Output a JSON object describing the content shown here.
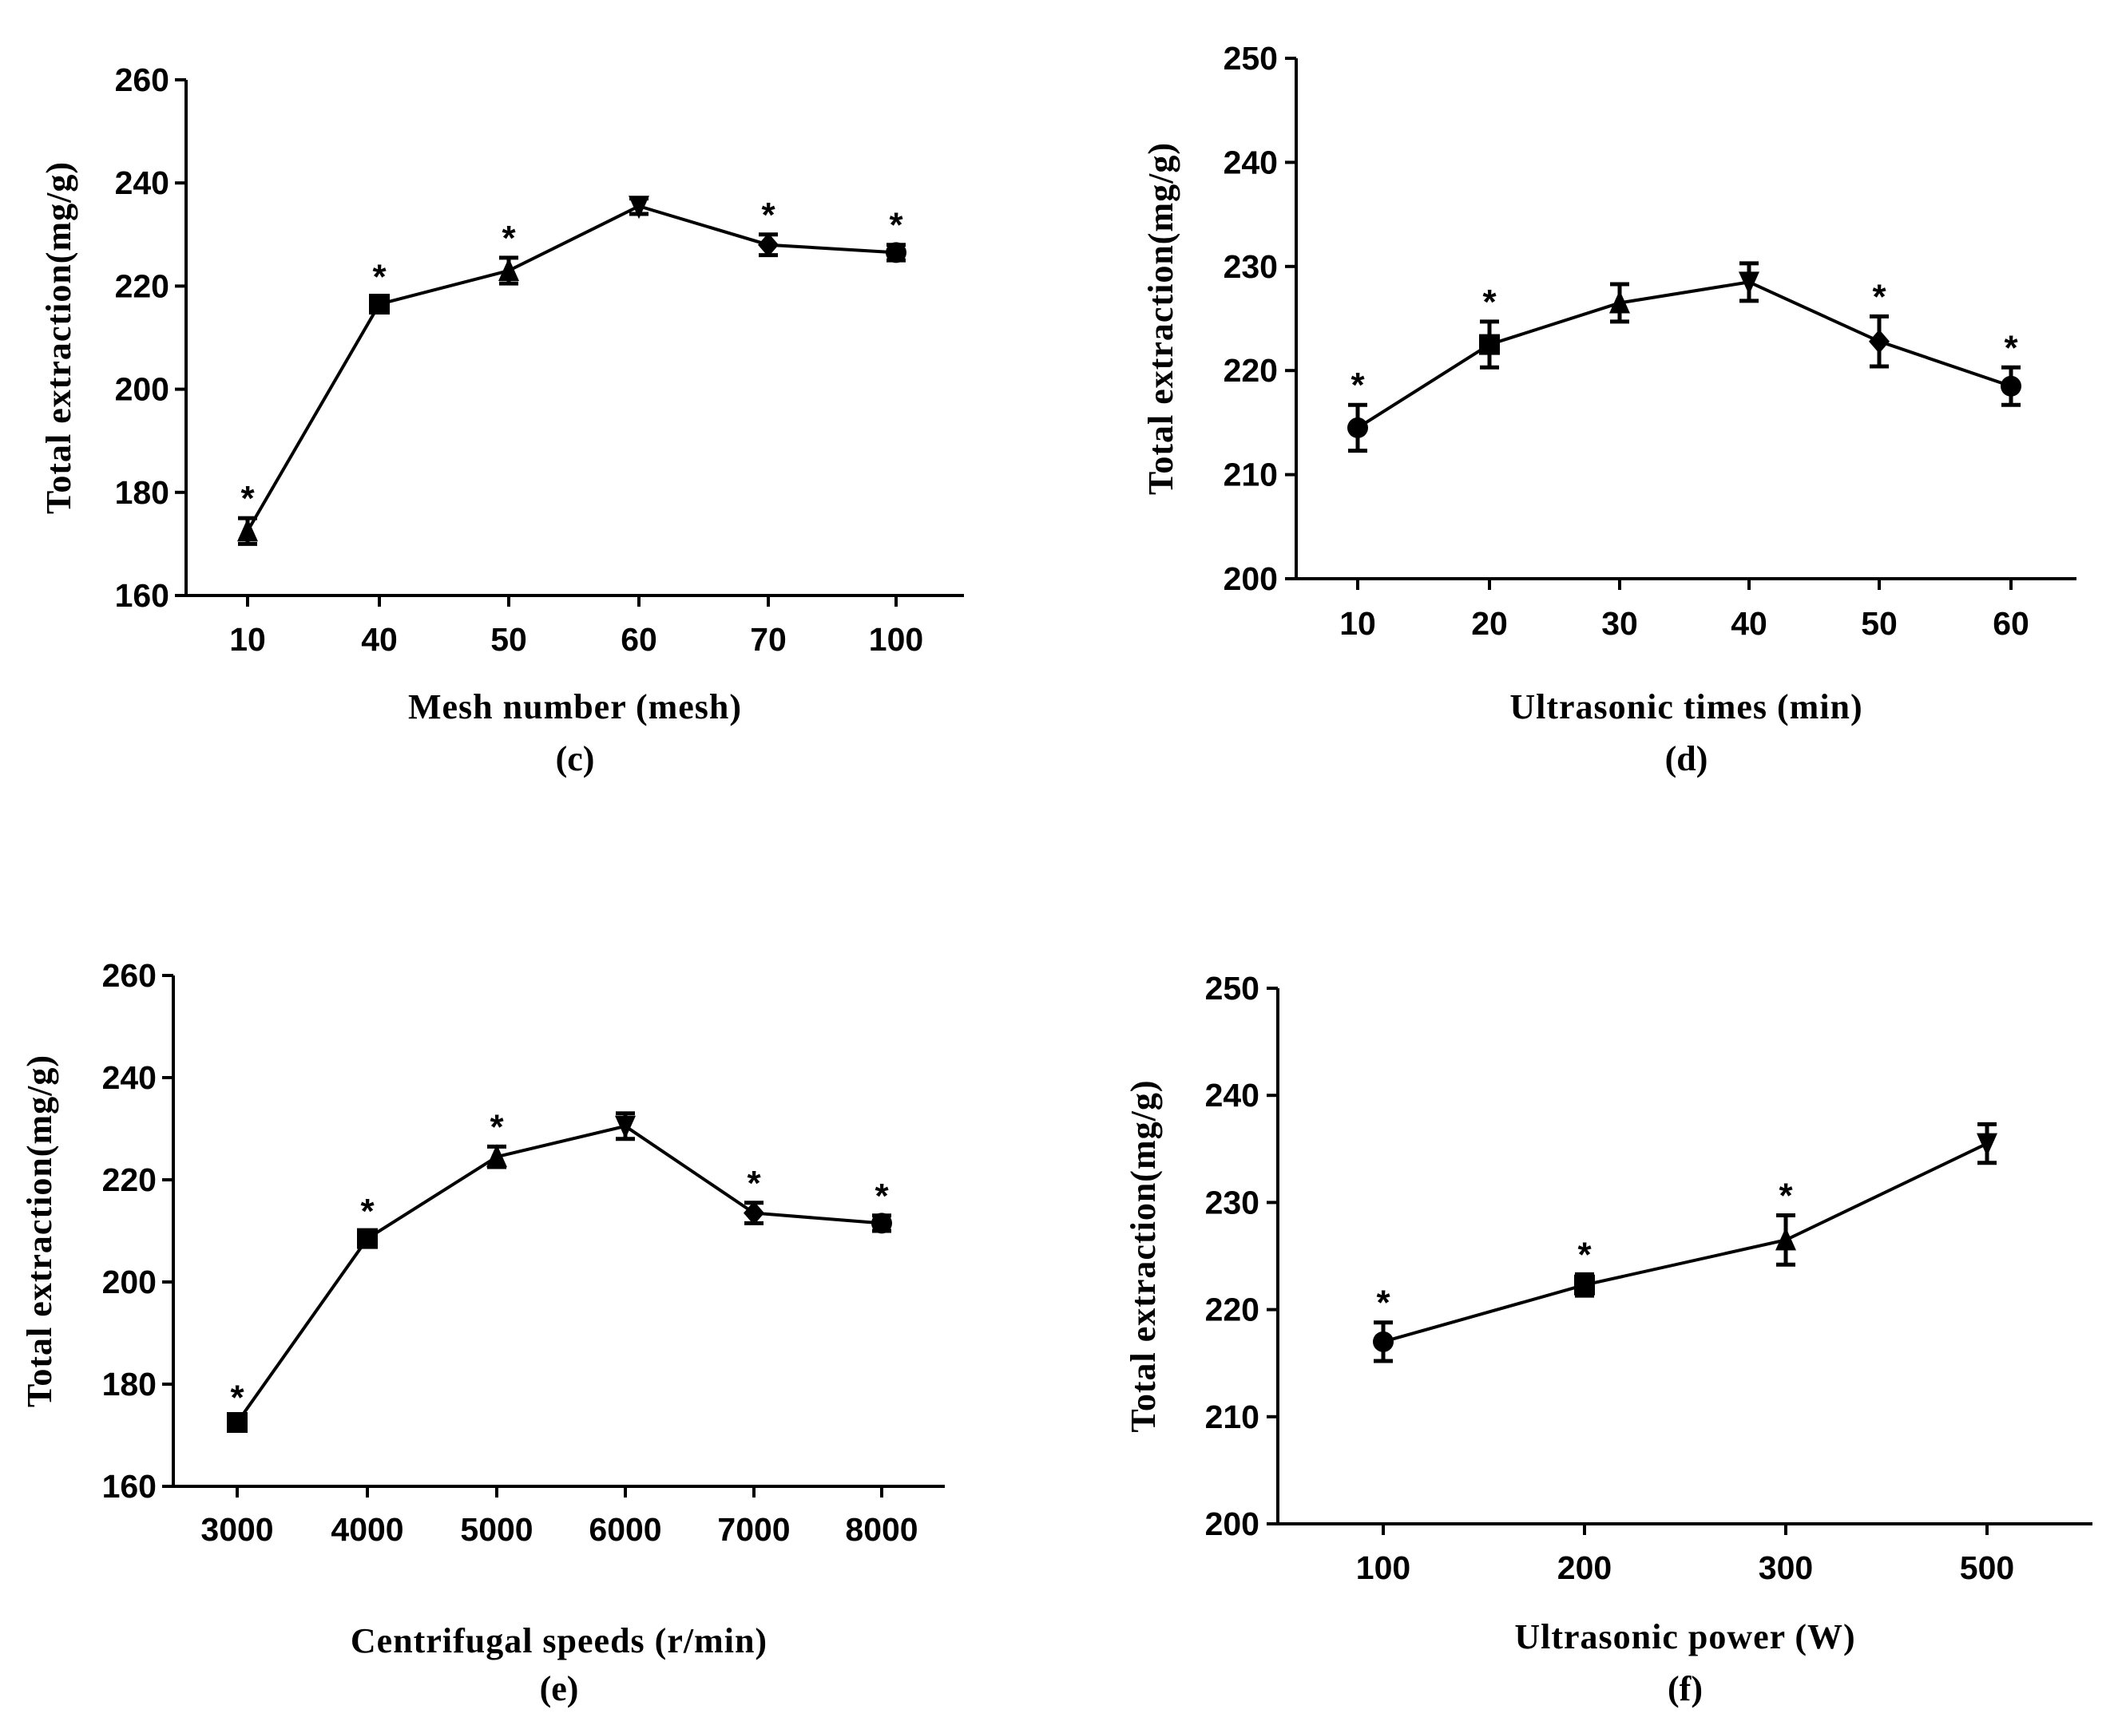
{
  "chart_data": [
    {
      "type": "line",
      "panel": "(c)",
      "xlabel": "Mesh number (mesh)",
      "ylabel": "Total extraction(mg/g)",
      "categories": [
        "10",
        "40",
        "50",
        "60",
        "70",
        "100"
      ],
      "values": [
        172.5,
        216.5,
        223,
        235.5,
        228,
        226.5
      ],
      "errors": [
        2.5,
        1.5,
        2.5,
        1.5,
        2,
        1.5
      ],
      "significant": [
        true,
        true,
        true,
        false,
        true,
        true
      ],
      "markers": [
        "triangle-up",
        "square",
        "triangle-up",
        "triangle-down",
        "diamond",
        "circle"
      ],
      "ylim": [
        160,
        260
      ],
      "yticks": [
        160,
        180,
        200,
        220,
        240,
        260
      ]
    },
    {
      "type": "line",
      "panel": "(d)",
      "xlabel": "Ultrasonic times (min)",
      "ylabel": "Total extraction(mg/g)",
      "categories": [
        "10",
        "20",
        "30",
        "40",
        "50",
        "60"
      ],
      "values": [
        214.5,
        222.5,
        226.5,
        228.5,
        222.8,
        218.5
      ],
      "errors": [
        2.2,
        2.2,
        1.8,
        1.8,
        2.4,
        1.8
      ],
      "significant": [
        true,
        true,
        false,
        false,
        true,
        true
      ],
      "markers": [
        "circle",
        "square",
        "triangle-up",
        "triangle-down",
        "diamond",
        "circle"
      ],
      "ylim": [
        200,
        250
      ],
      "yticks": [
        200,
        210,
        220,
        230,
        240,
        250
      ]
    },
    {
      "type": "line",
      "panel": "(e)",
      "xlabel": "Centrifugal speeds (r/min)",
      "ylabel": "Total extraction(mg/g)",
      "categories": [
        "3000",
        "4000",
        "5000",
        "6000",
        "7000",
        "8000"
      ],
      "values": [
        172.5,
        208.5,
        224.5,
        230.5,
        213.5,
        211.5
      ],
      "errors": [
        1,
        1.5,
        2,
        2.5,
        2,
        1.5
      ],
      "significant": [
        true,
        true,
        true,
        false,
        true,
        true
      ],
      "markers": [
        "square",
        "square",
        "triangle-up",
        "triangle-down",
        "diamond",
        "circle"
      ],
      "ylim": [
        160,
        260
      ],
      "yticks": [
        160,
        180,
        200,
        220,
        240,
        260
      ]
    },
    {
      "type": "line",
      "panel": "(f)",
      "xlabel": "Ultrasonic power (W)",
      "ylabel": "Total extraction(mg/g)",
      "categories": [
        "100",
        "200",
        "300",
        "500"
      ],
      "values": [
        217,
        222.3,
        226.5,
        235.5
      ],
      "errors": [
        1.8,
        1,
        2.3,
        1.8
      ],
      "significant": [
        true,
        true,
        true,
        false
      ],
      "markers": [
        "circle",
        "square",
        "triangle-up",
        "triangle-down"
      ],
      "ylim": [
        200,
        250
      ],
      "yticks": [
        200,
        210,
        220,
        230,
        240,
        250
      ]
    }
  ],
  "significance_symbol": "*",
  "colors": {
    "line": "#000000",
    "background": "#ffffff"
  }
}
